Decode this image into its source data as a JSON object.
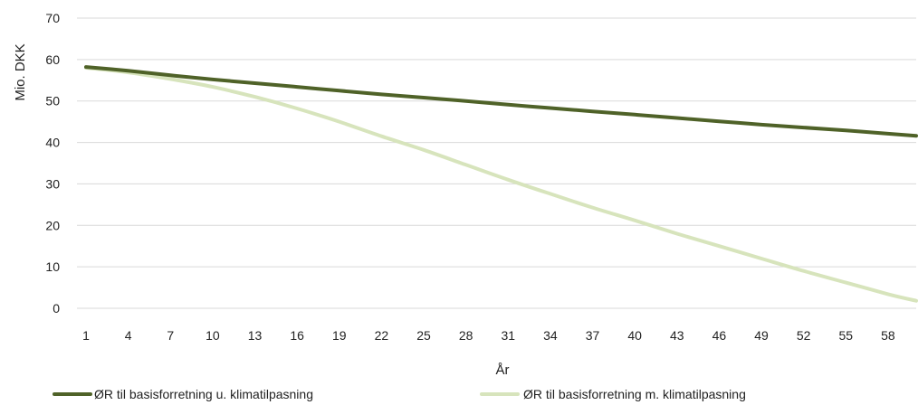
{
  "chart_data": {
    "type": "line",
    "xlabel": "År",
    "ylabel": "Mio. DKK",
    "ylim": [
      0,
      70
    ],
    "yticks": [
      0,
      10,
      20,
      30,
      40,
      50,
      60,
      70
    ],
    "xlim": [
      1,
      60
    ],
    "xticks": [
      1,
      4,
      7,
      10,
      13,
      16,
      19,
      22,
      25,
      28,
      31,
      34,
      37,
      40,
      43,
      46,
      49,
      52,
      55,
      58
    ],
    "grid": true,
    "legend_position": "bottom",
    "series": [
      {
        "name": "ØR til basisforretning u. klimatilpasning",
        "color": "#4f6228",
        "x": [
          1,
          4,
          7,
          10,
          13,
          16,
          19,
          22,
          25,
          28,
          31,
          34,
          37,
          40,
          43,
          46,
          49,
          52,
          55,
          58,
          60
        ],
        "values": [
          58.2,
          57.3,
          56.2,
          55.2,
          54.3,
          53.4,
          52.5,
          51.6,
          50.8,
          50.0,
          49.1,
          48.3,
          47.5,
          46.7,
          45.9,
          45.1,
          44.3,
          43.6,
          42.9,
          42.1,
          41.6
        ]
      },
      {
        "name": "ØR til basisforretning m. klimatilpasning",
        "color": "#d7e4bc",
        "x": [
          1,
          4,
          7,
          10,
          13,
          16,
          19,
          22,
          25,
          28,
          31,
          34,
          37,
          40,
          43,
          46,
          49,
          52,
          55,
          58,
          60
        ],
        "values": [
          58.0,
          56.9,
          55.3,
          53.4,
          51.0,
          48.2,
          45.0,
          41.5,
          38.2,
          34.6,
          31.0,
          27.6,
          24.3,
          21.2,
          18.0,
          15.0,
          12.0,
          9.0,
          6.2,
          3.4,
          1.8
        ]
      }
    ]
  }
}
